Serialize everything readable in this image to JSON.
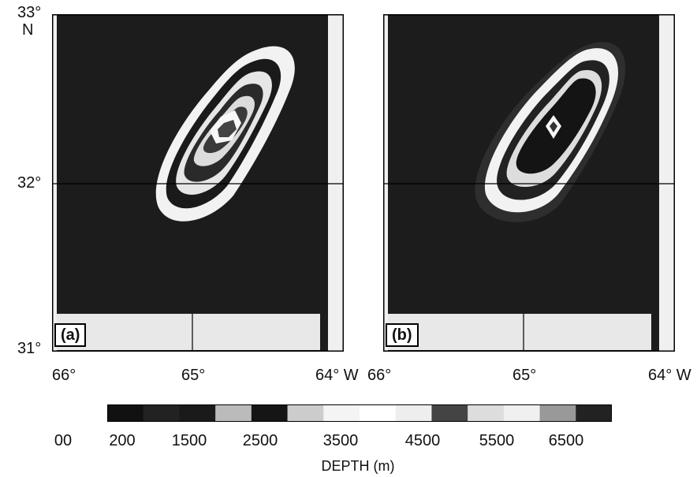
{
  "lat_labels": {
    "top": "33°",
    "top_n": "N",
    "mid": "32°",
    "bottom": "31°"
  },
  "panels": [
    {
      "label": "(a)",
      "lon_labels": [
        "66°",
        "65°",
        "64° W"
      ]
    },
    {
      "label": "(b)",
      "lon_labels": [
        "66°",
        "65°",
        "64° W"
      ]
    }
  ],
  "colorbar": {
    "ticks": [
      "00",
      "200",
      "1500",
      "2500",
      "3500",
      "4500",
      "5500",
      "6500"
    ],
    "title": "DEPTH (m)",
    "segment_colors": [
      "#111111",
      "#222222",
      "#1a1a1a",
      "#bbbbbb",
      "#151515",
      "#cccccc",
      "#f4f4f4",
      "#ffffff",
      "#eeeeee",
      "#444444",
      "#dddddd",
      "#f0f0f0",
      "#999999",
      "#222222"
    ]
  },
  "colors": {
    "water": "#1c1c1c",
    "shelf": "#e8e8e8",
    "contour_light": "#f2f2f2",
    "contour_dark": "#151515",
    "frame": "#000000"
  }
}
